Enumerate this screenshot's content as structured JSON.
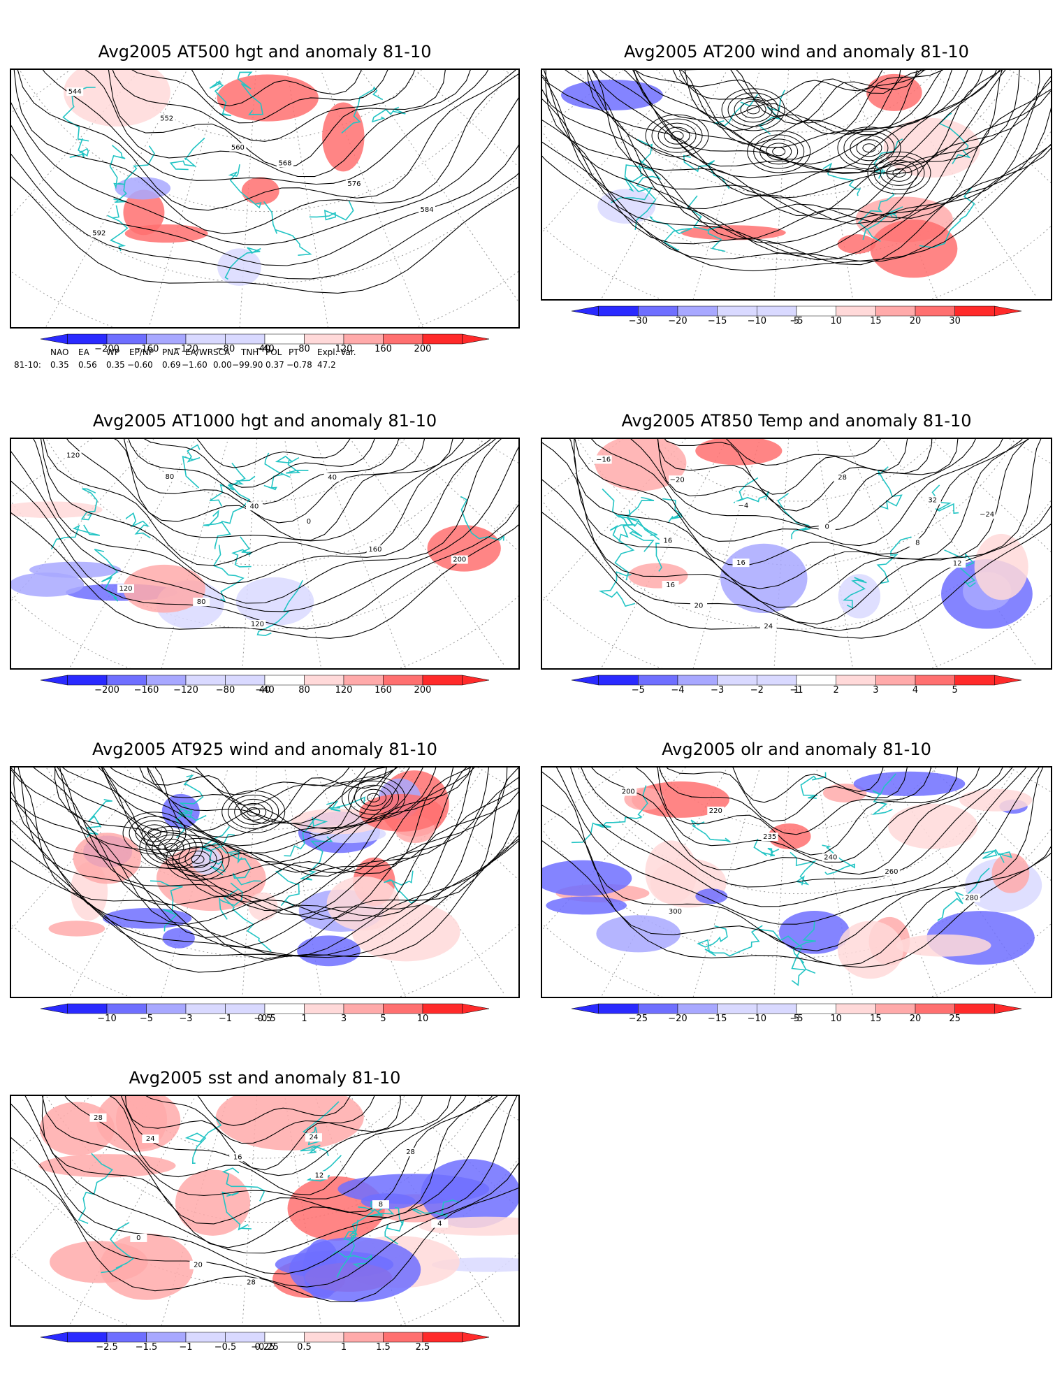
{
  "panels": [
    {
      "id": "at500",
      "title": "Avg2005 AT500 hgt and anomaly 81-10",
      "colorbar": {
        "ticks": [
          "−200",
          "−160",
          "−120",
          "−80",
          "−40",
          "40",
          "80",
          "120",
          "160",
          "200"
        ]
      },
      "contour_labels": [
        "544",
        "552",
        "560",
        "568",
        "576",
        "584",
        "592"
      ],
      "field": "height",
      "vectors": false
    },
    {
      "id": "at200",
      "title": "Avg2005 AT200 wind and anomaly 81-10",
      "colorbar": {
        "ticks": [
          "−30",
          "−20",
          "−15",
          "−10",
          "−5",
          "5",
          "10",
          "15",
          "20",
          "30"
        ]
      },
      "contour_labels": [],
      "field": "streamlines",
      "vectors": true
    },
    {
      "id": "at1000",
      "title": "Avg2005 AT1000 hgt and anomaly 81-10",
      "colorbar": {
        "ticks": [
          "−200",
          "−160",
          "−120",
          "−80",
          "−40",
          "40",
          "80",
          "120",
          "160",
          "200"
        ]
      },
      "contour_labels": [
        "120",
        "80",
        "40",
        "0",
        "160",
        "200",
        "120",
        "80",
        "120",
        "40"
      ],
      "field": "height",
      "vectors": false
    },
    {
      "id": "at850",
      "title": "Avg2005 AT850 Temp and anomaly 81-10",
      "colorbar": {
        "ticks": [
          "−5",
          "−4",
          "−3",
          "−2",
          "−1",
          "1",
          "2",
          "3",
          "4",
          "5"
        ]
      },
      "contour_labels": [
        "−16",
        "−20",
        "−4",
        "0",
        "8",
        "12",
        "16",
        "20",
        "24",
        "28",
        "32",
        "−24",
        "16",
        "16"
      ],
      "field": "temp",
      "vectors": false
    },
    {
      "id": "at925",
      "title": "Avg2005 AT925 wind and anomaly 81-10",
      "colorbar": {
        "ticks": [
          "−10",
          "−5",
          "−3",
          "−1",
          "−0.5",
          "0.5",
          "1",
          "3",
          "5",
          "10"
        ]
      },
      "contour_labels": [],
      "field": "streamlines",
      "vectors": true
    },
    {
      "id": "olr",
      "title": "Avg2005 olr and anomaly 81-10",
      "colorbar": {
        "ticks": [
          "−25",
          "−20",
          "−15",
          "−10",
          "−5",
          "5",
          "10",
          "15",
          "20",
          "25"
        ]
      },
      "contour_labels": [
        "200",
        "220",
        "235",
        "240",
        "260",
        "280",
        "300"
      ],
      "field": "olr",
      "vectors": false
    },
    {
      "id": "sst",
      "title": "Avg2005 sst and anomaly 81-10",
      "colorbar": {
        "ticks": [
          "−2.5",
          "−1.5",
          "−1",
          "−0.5",
          "−0.25",
          "0.25",
          "0.5",
          "1",
          "1.5",
          "2.5"
        ]
      },
      "contour_labels": [
        "28",
        "24",
        "16",
        "12",
        "8",
        "4",
        "0",
        "20",
        "28",
        "24",
        "28"
      ],
      "field": "sst",
      "vectors": false
    }
  ],
  "teleconnections": {
    "headers": [
      "NAO",
      "EA",
      "WP",
      "EP/NP",
      "PNA",
      "EA/WR",
      "SCA",
      "TNH",
      "POL",
      "PT",
      "Expl. Var."
    ],
    "row_label": "81-10:",
    "values": [
      "0.35",
      "0.56",
      "0.35",
      "−0.60",
      "0.69",
      "−1.60",
      "0.00",
      "−99.90",
      "0.37",
      "−0.78",
      "47.2"
    ]
  },
  "palette": {
    "blue_strong": "#2a2aff",
    "blue_mid": "#6f6fff",
    "blue_light": "#a8a8ff",
    "blue_pale": "#d9d9ff",
    "red_pale": "#ffd9d9",
    "red_light": "#ffaaaa",
    "red_mid": "#ff7070",
    "red_strong": "#ff2a2a",
    "coast": "#22c4c4",
    "contour": "#000000",
    "grid": "#999999"
  }
}
